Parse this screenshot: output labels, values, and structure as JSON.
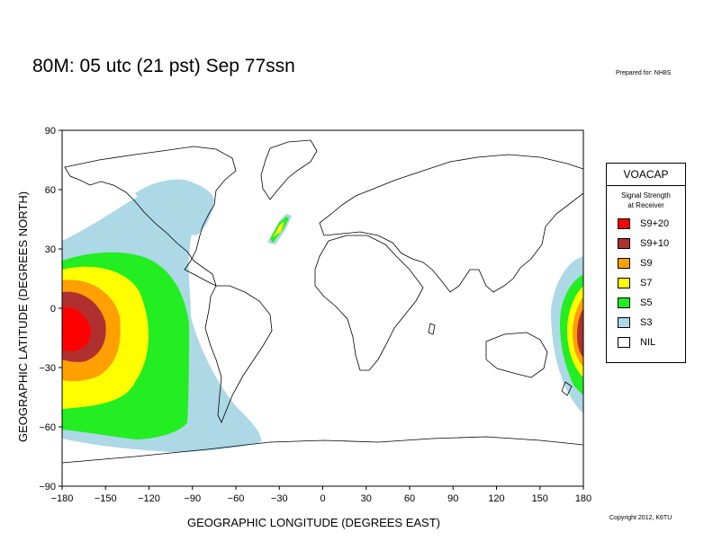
{
  "title": "80M:  05 utc (21 pst) Sep 77ssn",
  "prepared_for": "Prepared for: NH8S",
  "copyright": "Copyright 2012, K6TU",
  "x_axis_label": "GEOGRAPHIC LONGITUDE (DEGREES EAST)",
  "y_axis_label": "GEOGRAPHIC LATITUDE (DEGREES NORTH)",
  "x_ticks": [
    "−180",
    "−150",
    "−120",
    "−90",
    "−60",
    "−30",
    "0",
    "30",
    "60",
    "90",
    "120",
    "150",
    "180"
  ],
  "y_ticks": [
    "90",
    "60",
    "30",
    "0",
    "−30",
    "−60",
    "−90"
  ],
  "legend": {
    "title": "VOACAP",
    "subtitle_line1": "Signal Strength",
    "subtitle_line2": "at Receiver",
    "items": [
      {
        "label": "S9+20",
        "color": "#ff0000"
      },
      {
        "label": "S9+10",
        "color": "#b03030"
      },
      {
        "label": "S9",
        "color": "#ff9f00"
      },
      {
        "label": "S7",
        "color": "#ffff00"
      },
      {
        "label": "S5",
        "color": "#22ee22"
      },
      {
        "label": "S3",
        "color": "#add8e6"
      },
      {
        "label": "NIL",
        "color": "#ffffff"
      }
    ]
  }
}
